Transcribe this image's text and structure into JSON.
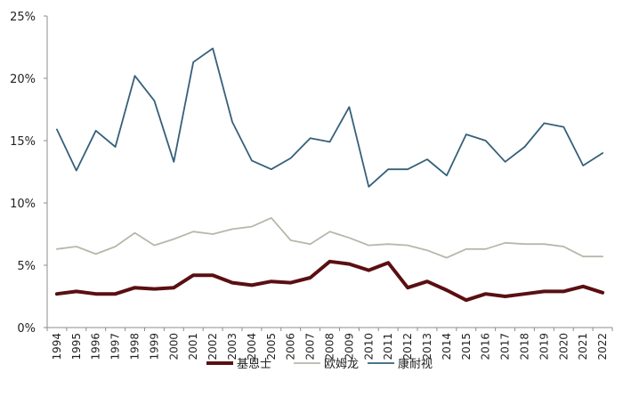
{
  "chart_data": {
    "type": "line",
    "title": "",
    "xlabel": "",
    "ylabel": "",
    "x": [
      "1994",
      "1995",
      "1996",
      "1997",
      "1998",
      "1999",
      "2000",
      "2001",
      "2002",
      "2003",
      "2004",
      "2005",
      "2006",
      "2007",
      "2008",
      "2009",
      "2010",
      "2011",
      "2012",
      "2013",
      "2014",
      "2015",
      "2016",
      "2017",
      "2018",
      "2019",
      "2020",
      "2021",
      "2022"
    ],
    "ylim": [
      0,
      25
    ],
    "yticks": [
      0,
      5,
      10,
      15,
      20,
      25
    ],
    "ytick_labels": [
      "0%",
      "5%",
      "10%",
      "15%",
      "20%",
      "25%"
    ],
    "grid": false,
    "legend_position": "bottom",
    "series": [
      {
        "name": "基恩士",
        "color": "#5a0f12",
        "values": [
          2.7,
          2.9,
          2.7,
          2.7,
          3.2,
          3.1,
          3.2,
          4.2,
          4.2,
          3.6,
          3.4,
          3.7,
          3.6,
          4.0,
          5.3,
          5.1,
          4.6,
          5.2,
          3.2,
          3.7,
          3.0,
          2.2,
          2.7,
          2.5,
          2.7,
          2.9,
          2.9,
          3.3,
          2.8
        ]
      },
      {
        "name": "欧姆龙",
        "color": "#b9b7aa",
        "values": [
          6.3,
          6.5,
          5.9,
          6.5,
          7.6,
          6.6,
          7.1,
          7.7,
          7.5,
          7.9,
          8.1,
          8.8,
          7.0,
          6.7,
          7.7,
          7.2,
          6.6,
          6.7,
          6.6,
          6.2,
          5.6,
          6.3,
          6.3,
          6.8,
          6.7,
          6.7,
          6.5,
          5.7,
          5.7
        ]
      },
      {
        "name": "康耐视",
        "color": "#35607a",
        "values": [
          15.9,
          12.6,
          15.8,
          14.5,
          20.2,
          18.2,
          13.3,
          21.3,
          22.4,
          16.5,
          13.4,
          12.7,
          13.6,
          15.2,
          14.9,
          17.7,
          11.3,
          12.7,
          12.7,
          13.5,
          12.2,
          15.5,
          15.0,
          13.3,
          14.5,
          16.4,
          16.1,
          13.0,
          14.0
        ]
      }
    ]
  }
}
